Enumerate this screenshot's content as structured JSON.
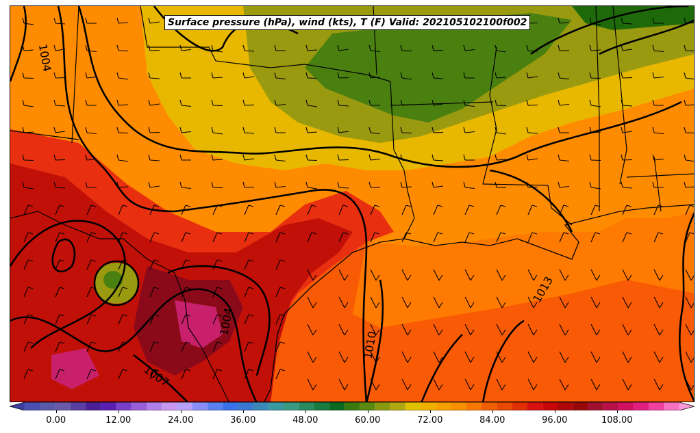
{
  "title": "Surface pressure (hPa), wind (kts), T (F) Valid: 202105102100f002",
  "isobar_labels": [
    "1004",
    "1004",
    "1007",
    "1010",
    "1013"
  ],
  "colorbar": {
    "ticks": [
      "0.00",
      "12.00",
      "24.00",
      "36.00",
      "48.00",
      "60.00",
      "72.00",
      "84.00",
      "96.00",
      "108.00"
    ],
    "min": -6,
    "max": 120,
    "colors": [
      "#3a3fa0",
      "#4a4fb0",
      "#5a5aa8",
      "#6a5aa8",
      "#5b3fa0",
      "#4a1f98",
      "#5a1fb0",
      "#7a3fc8",
      "#9a5fd8",
      "#b080e8",
      "#c898f0",
      "#b8a0f8",
      "#8a8cf8",
      "#5a80f0",
      "#3a70e8",
      "#3a78d0",
      "#3a88b8",
      "#3a98a0",
      "#3a9a80",
      "#2a8a60",
      "#1a7a40",
      "#0a6a20",
      "#3a7a10",
      "#5a8a10",
      "#8a9a10",
      "#b0a810",
      "#e0c000",
      "#f0b000",
      "#f8a000",
      "#f89000",
      "#f87800",
      "#f06000",
      "#e84800",
      "#e03000",
      "#d81010",
      "#c80808",
      "#b00808",
      "#980808",
      "#a01030",
      "#b81048",
      "#d01060",
      "#e02080",
      "#f040a0",
      "#f870c0",
      "#ff98d8"
    ]
  },
  "colors": {
    "ocean": "#f95a05",
    "gulf_light": "#ff7a00",
    "land_orange": "#ff8c00",
    "land_yellow": "#e8b800",
    "land_olive": "#9a9a10",
    "land_green": "#4a8010",
    "land_darkgreen": "#1e6a0a",
    "texas_red": "#e83010",
    "texas_darkred": "#c01008",
    "texas_maroon": "#8a0a1a",
    "magenta": "#c8206a"
  }
}
